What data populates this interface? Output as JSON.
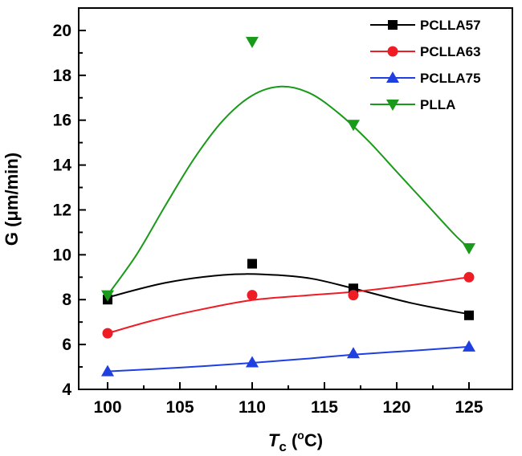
{
  "chart_data": {
    "type": "line",
    "xlabel": "T",
    "xlabel_sub": "c",
    "xlabel_unit_open": " (",
    "xlabel_unit_sup": "o",
    "xlabel_unit_close": "C)",
    "ylabel": "G (μm/min)",
    "xlim": [
      98,
      128
    ],
    "ylim": [
      4,
      21
    ],
    "xticks": [
      100,
      105,
      110,
      115,
      120,
      125
    ],
    "yticks": [
      4,
      6,
      8,
      10,
      12,
      14,
      16,
      18,
      20
    ],
    "legend_position": "top-right",
    "series": [
      {
        "name": "PCLLA57",
        "color": "#000000",
        "marker": "square",
        "x": [
          100,
          110,
          117,
          125
        ],
        "y": [
          8.0,
          9.6,
          8.5,
          7.3
        ],
        "fit": [
          [
            100,
            8.1
          ],
          [
            104,
            8.75
          ],
          [
            108,
            9.1
          ],
          [
            111,
            9.12
          ],
          [
            114,
            8.95
          ],
          [
            117,
            8.5
          ],
          [
            121,
            7.85
          ],
          [
            125,
            7.35
          ]
        ]
      },
      {
        "name": "PCLLA63",
        "color": "#ee1c24",
        "marker": "circle",
        "x": [
          100,
          110,
          117,
          125
        ],
        "y": [
          6.5,
          8.2,
          8.2,
          9.0
        ],
        "fit": [
          [
            100,
            6.5
          ],
          [
            103,
            7.05
          ],
          [
            106,
            7.5
          ],
          [
            110,
            7.98
          ],
          [
            114,
            8.2
          ],
          [
            117,
            8.35
          ],
          [
            121,
            8.65
          ],
          [
            125,
            9.0
          ]
        ]
      },
      {
        "name": "PCLLA75",
        "color": "#1f3fe0",
        "marker": "triangle-up",
        "x": [
          100,
          110,
          117,
          125
        ],
        "y": [
          4.8,
          5.2,
          5.6,
          5.9
        ],
        "fit": [
          [
            100,
            4.8
          ],
          [
            105,
            4.97
          ],
          [
            110,
            5.18
          ],
          [
            114,
            5.38
          ],
          [
            117,
            5.55
          ],
          [
            121,
            5.72
          ],
          [
            125,
            5.9
          ]
        ]
      },
      {
        "name": "PLLA",
        "color": "#1a9a1a",
        "marker": "triangle-down",
        "x": [
          100,
          110,
          117,
          125
        ],
        "y": [
          8.2,
          19.5,
          15.8,
          10.3
        ],
        "fit": [
          [
            100,
            8.2
          ],
          [
            102,
            10.0
          ],
          [
            104,
            12.2
          ],
          [
            106,
            14.3
          ],
          [
            108,
            16.0
          ],
          [
            110,
            17.1
          ],
          [
            112,
            17.5
          ],
          [
            114,
            17.2
          ],
          [
            116,
            16.3
          ],
          [
            118,
            15.1
          ],
          [
            120,
            13.7
          ],
          [
            122,
            12.3
          ],
          [
            124,
            10.9
          ],
          [
            125,
            10.3
          ]
        ]
      }
    ]
  }
}
